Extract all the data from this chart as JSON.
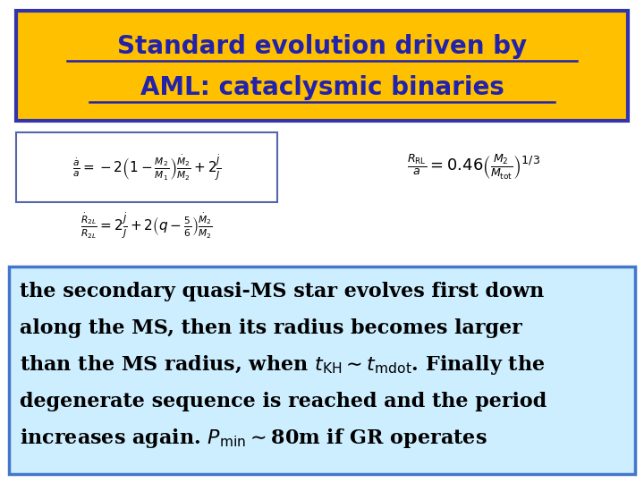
{
  "title_line1": "Standard evolution driven by",
  "title_line2": "AML: cataclysmic binaries",
  "title_bg": "#FFC000",
  "title_border": "#3333AA",
  "title_color": "#2222AA",
  "bg_color": "#FFFFFF",
  "eq1": "$\\frac{\\dot{a}}{a} = -2\\left(1 - \\frac{M_2}{M_1}\\right)\\frac{\\dot{M}_2}{M_2} + 2\\frac{\\dot{J}}{J}$",
  "eq2": "$\\frac{\\dot{R}_{2L}}{R_{2L}} = 2\\frac{\\dot{J}}{J} + 2\\left(q - \\frac{5}{6}\\right)\\frac{\\dot{M}_2}{M_2}$",
  "eq3": "$\\frac{R_{\\mathrm{RL}}}{a} = 0.46\\left(\\frac{M_2}{M_{\\mathrm{tot}}}\\right)^{1/3}$",
  "body_text_line1": "the secondary quasi-MS star evolves first down",
  "body_text_line2": "along the MS, then its radius becomes larger",
  "body_text_line3": "than the MS radius, when $t_{\\mathrm{KH}}\\sim t_{\\mathrm{mdot}}$. Finally the",
  "body_text_line4": "degenerate sequence is reached and the period",
  "body_text_line5": "increases again. $P_{\\mathrm{min}}\\sim$80m if GR operates",
  "body_bg": "#CCEEFF",
  "body_border": "#4477CC",
  "eq_color": "#333366",
  "title_fontsize": 20,
  "body_fontsize": 16,
  "eq_fontsize": 11
}
